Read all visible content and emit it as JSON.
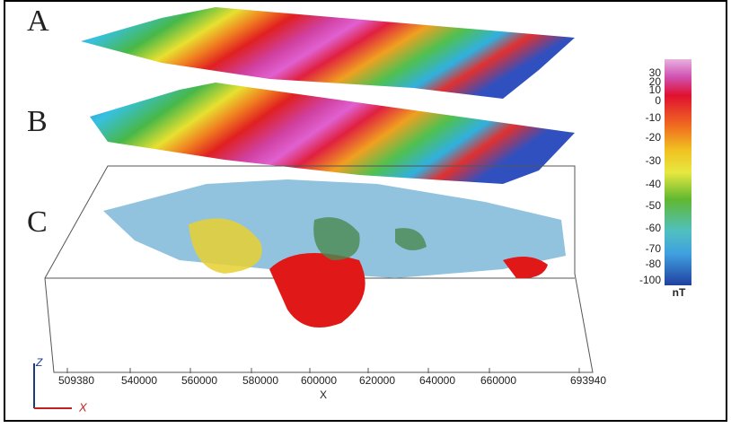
{
  "panels": [
    "A",
    "B",
    "C"
  ],
  "colorbar": {
    "labels": [
      "30",
      "20",
      "10",
      "0",
      "-10",
      "-20",
      "-30",
      "-40",
      "-50",
      "-60",
      "-70",
      "-80",
      "-100"
    ],
    "unit": "nT"
  },
  "x_axis": {
    "ticks": [
      "509380",
      "540000",
      "560000",
      "580000",
      "600000",
      "620000",
      "640000",
      "660000",
      "693940"
    ],
    "label": "X"
  },
  "triad": {
    "z": "Z",
    "x": "X"
  }
}
